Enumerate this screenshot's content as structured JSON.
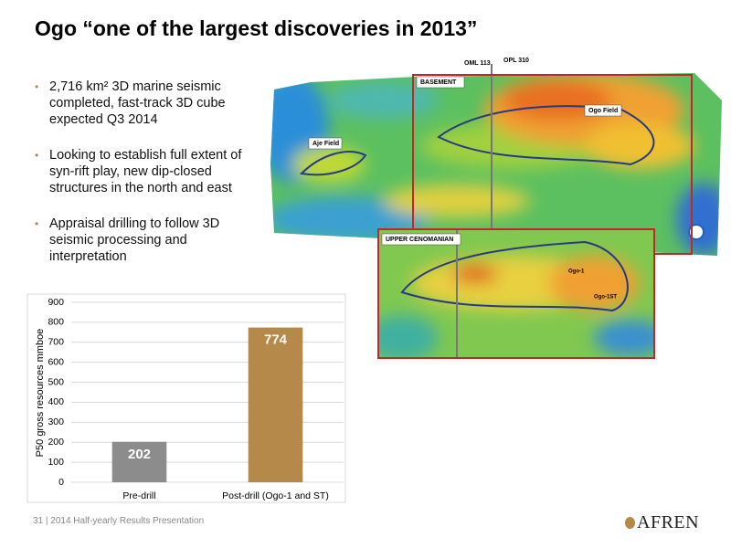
{
  "title": "Ogo “one of the largest discoveries in 2013”",
  "bullets": [
    "2,716 km² 3D marine seismic completed, fast-track 3D cube expected Q3 2014",
    "Looking to establish full extent of syn-rift play, new dip-closed structures in the north and east",
    "Appraisal drilling to follow 3D seismic processing and interpretation"
  ],
  "map": {
    "labels": {
      "oml": "OML 113",
      "opl": "OPL 310",
      "basement": "BASEMENT",
      "ogo_field": "Ogo Field",
      "aje_field": "Aje Field",
      "upper": "UPPER CENOMANIAN",
      "ogo1": "Ogo-1",
      "ogo1st": "Ogo-1ST"
    }
  },
  "chart_data": {
    "type": "bar",
    "y_label": "P50 gross resources mmboe",
    "categories": [
      "Pre-drill",
      "Post-drill (Ogo-1 and ST)"
    ],
    "values": [
      202,
      774
    ],
    "colors": [
      "#8c8c8c",
      "#b5894a"
    ],
    "ylim": [
      0,
      900
    ],
    "yticks": [
      0,
      100,
      200,
      300,
      400,
      500,
      600,
      700,
      800,
      900
    ],
    "grid": true
  },
  "footer": {
    "page": "31",
    "text": "| 2014 Half-yearly Results Presentation",
    "logo": "AFREN"
  }
}
